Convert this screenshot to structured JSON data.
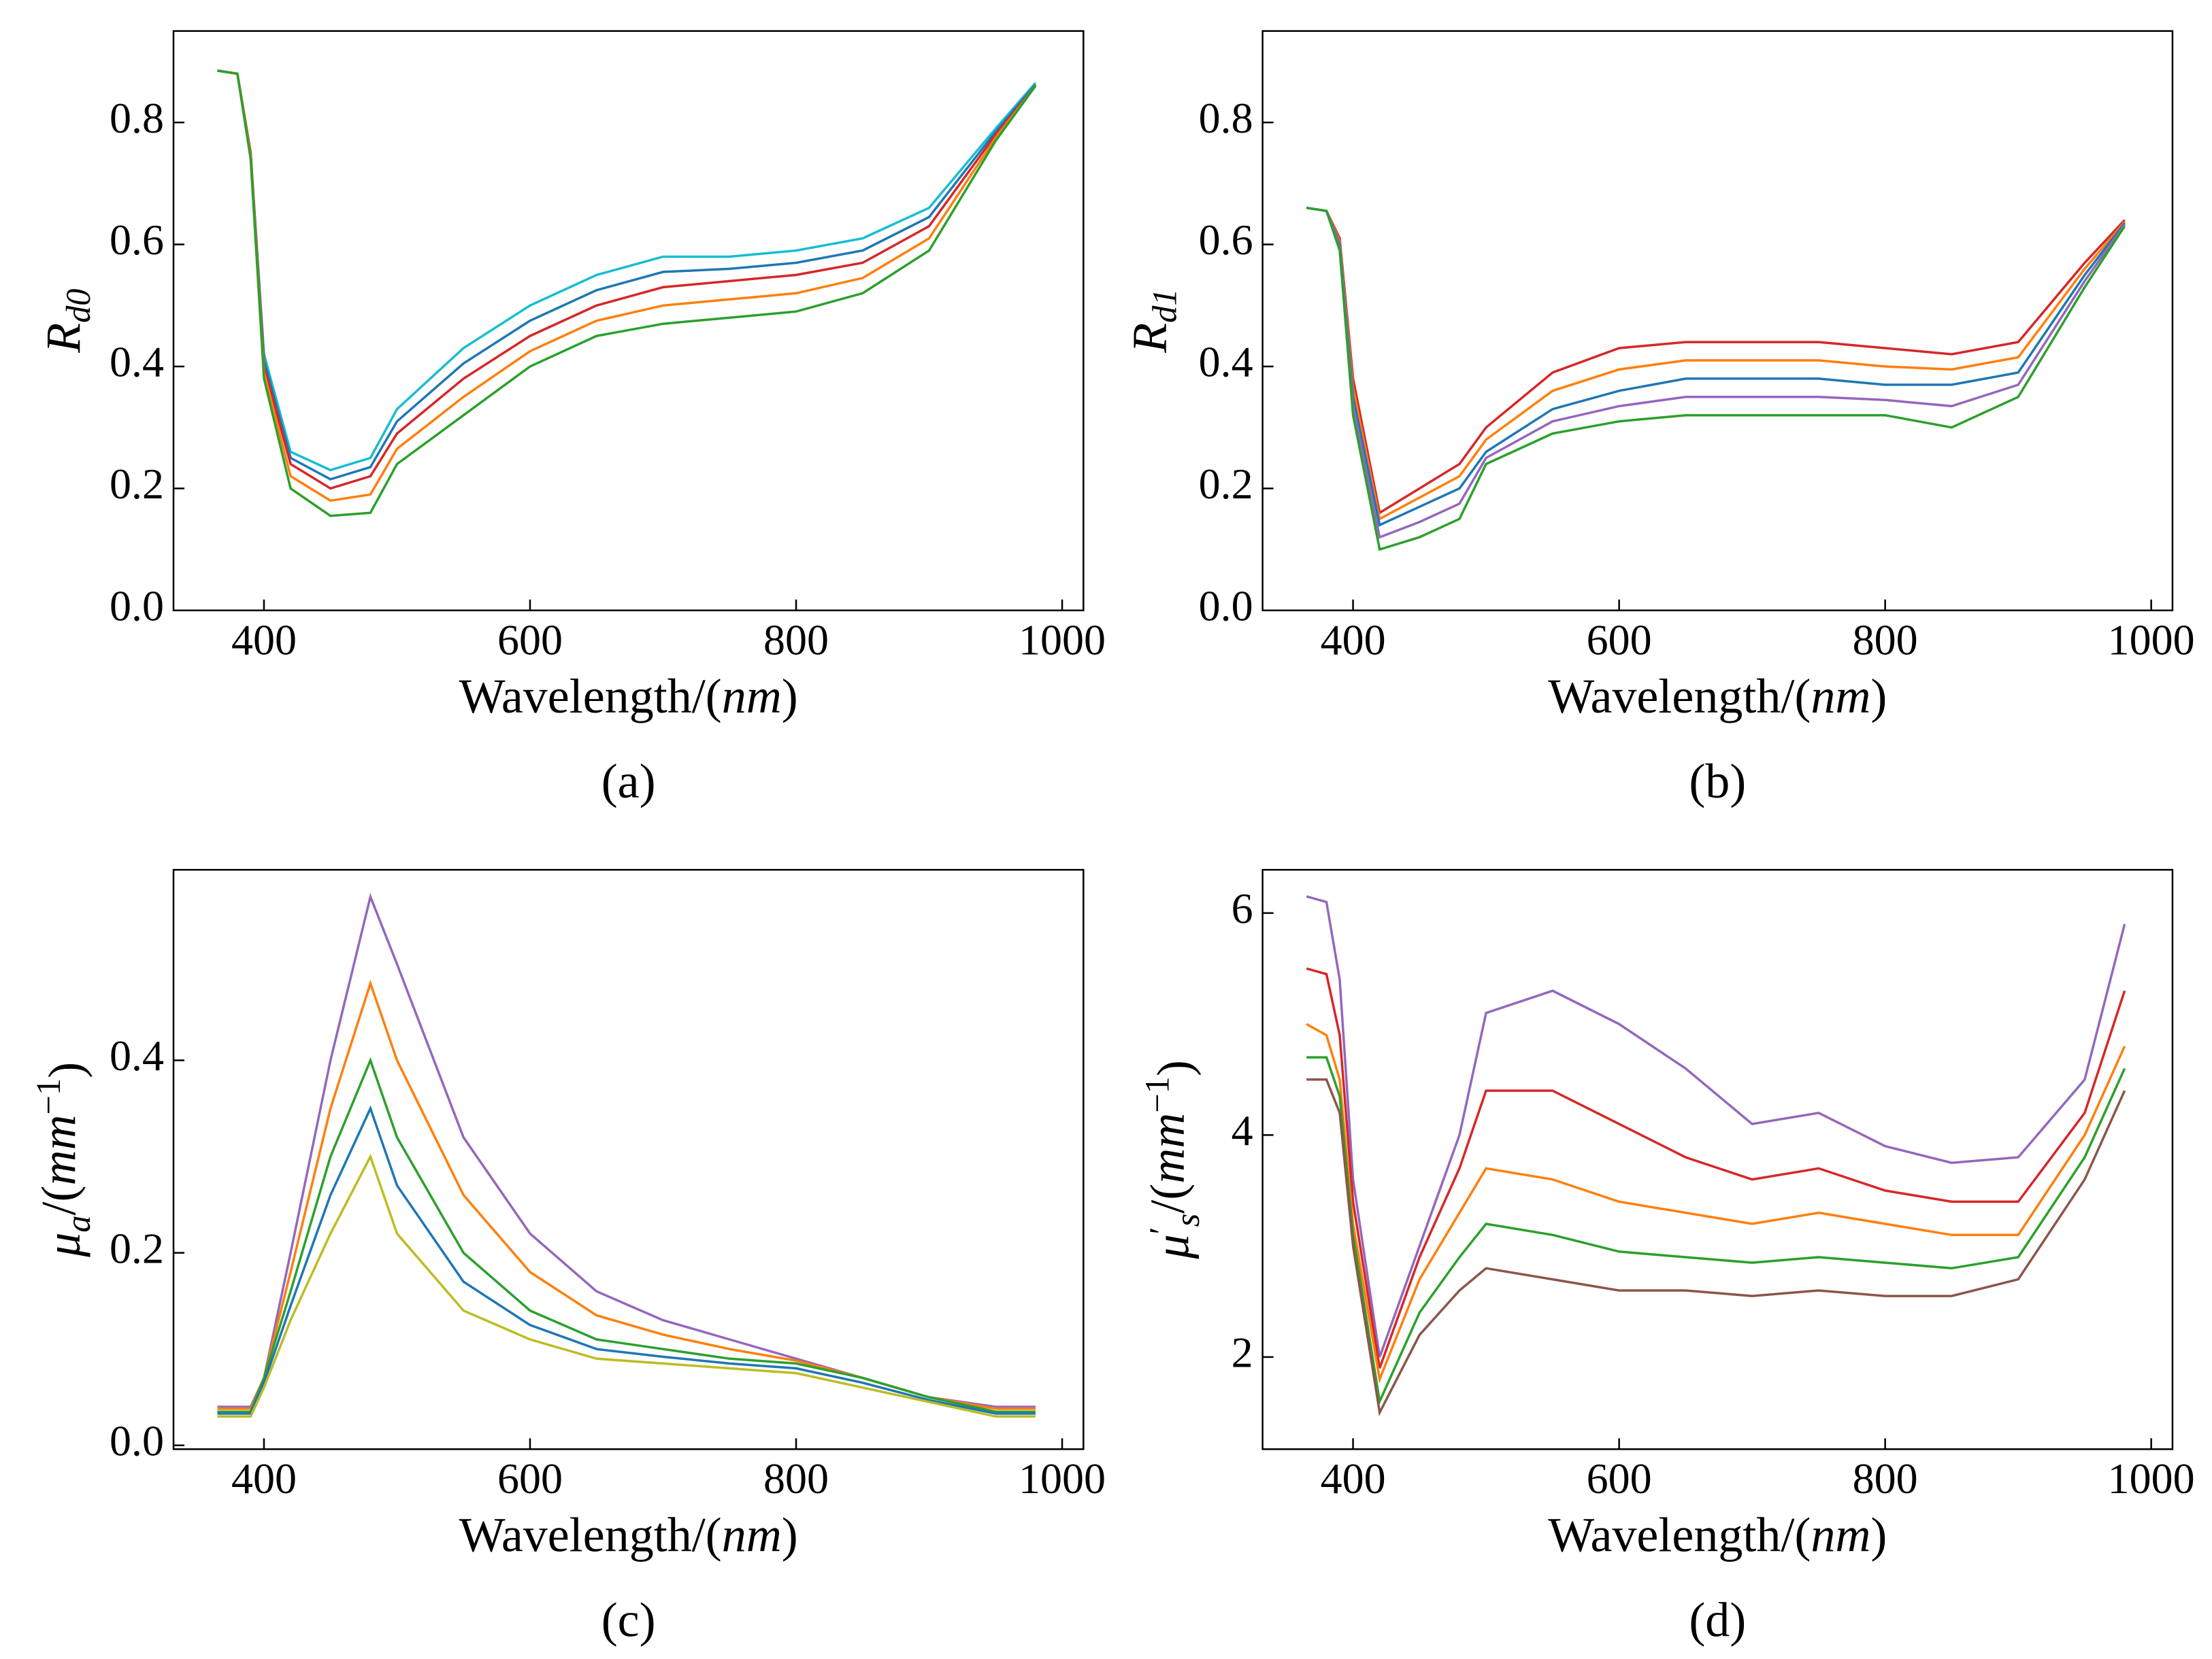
{
  "chart_data": [
    {
      "type": "line",
      "caption": "(a)",
      "xlabel": [
        {
          "text": "Wavelength/(",
          "style": "normal"
        },
        {
          "text": "nm",
          "style": "italic"
        },
        {
          "text": ")",
          "style": "normal"
        }
      ],
      "ylabel": [
        {
          "text": "R",
          "style": "italic"
        },
        {
          "text": "d0",
          "style": "sub"
        }
      ],
      "x": [
        365,
        380,
        390,
        400,
        420,
        450,
        480,
        500,
        550,
        600,
        650,
        700,
        750,
        800,
        850,
        900,
        950,
        980
      ],
      "series": [
        {
          "color": "#17becf",
          "values": [
            0.885,
            0.88,
            0.75,
            0.42,
            0.26,
            0.23,
            0.25,
            0.33,
            0.43,
            0.5,
            0.55,
            0.58,
            0.58,
            0.59,
            0.61,
            0.66,
            0.79,
            0.865
          ]
        },
        {
          "color": "#1f77b4",
          "values": [
            0.885,
            0.88,
            0.75,
            0.41,
            0.25,
            0.215,
            0.235,
            0.31,
            0.405,
            0.475,
            0.525,
            0.555,
            0.56,
            0.57,
            0.59,
            0.645,
            0.785,
            0.862
          ]
        },
        {
          "color": "#d62728",
          "values": [
            0.885,
            0.88,
            0.75,
            0.4,
            0.24,
            0.2,
            0.22,
            0.29,
            0.38,
            0.45,
            0.5,
            0.53,
            0.54,
            0.55,
            0.57,
            0.63,
            0.78,
            0.86
          ]
        },
        {
          "color": "#ff7f0e",
          "values": [
            0.885,
            0.88,
            0.745,
            0.39,
            0.22,
            0.18,
            0.19,
            0.265,
            0.35,
            0.425,
            0.475,
            0.5,
            0.51,
            0.52,
            0.545,
            0.61,
            0.775,
            0.86
          ]
        },
        {
          "color": "#2ca02c",
          "values": [
            0.885,
            0.88,
            0.74,
            0.38,
            0.2,
            0.155,
            0.16,
            0.24,
            0.32,
            0.4,
            0.45,
            0.47,
            0.48,
            0.49,
            0.52,
            0.59,
            0.77,
            0.86
          ]
        }
      ],
      "xlim": [
        332,
        1016
      ],
      "ylim": [
        0,
        0.95
      ],
      "xticks": [
        400,
        600,
        800,
        1000
      ],
      "yticks": [
        {
          "value": 0,
          "label": "0.0"
        },
        0.2,
        0.4,
        0.6,
        0.8
      ]
    },
    {
      "type": "line",
      "caption": "(b)",
      "xlabel": [
        {
          "text": "Wavelength/(",
          "style": "normal"
        },
        {
          "text": "nm",
          "style": "italic"
        },
        {
          "text": ")",
          "style": "normal"
        }
      ],
      "ylabel": [
        {
          "text": "R",
          "style": "italic"
        },
        {
          "text": "d1",
          "style": "sub"
        }
      ],
      "x": [
        365,
        380,
        390,
        400,
        420,
        450,
        480,
        500,
        550,
        600,
        650,
        700,
        750,
        800,
        850,
        900,
        950,
        980
      ],
      "series": [
        {
          "color": "#d62728",
          "values": [
            0.66,
            0.655,
            0.61,
            0.38,
            0.16,
            0.2,
            0.24,
            0.3,
            0.39,
            0.43,
            0.44,
            0.44,
            0.44,
            0.43,
            0.42,
            0.44,
            0.57,
            0.64
          ]
        },
        {
          "color": "#ff7f0e",
          "values": [
            0.66,
            0.655,
            0.605,
            0.365,
            0.15,
            0.185,
            0.22,
            0.28,
            0.36,
            0.395,
            0.41,
            0.41,
            0.41,
            0.4,
            0.395,
            0.415,
            0.56,
            0.637
          ]
        },
        {
          "color": "#1f77b4",
          "values": [
            0.66,
            0.655,
            0.6,
            0.35,
            0.14,
            0.17,
            0.2,
            0.26,
            0.33,
            0.36,
            0.38,
            0.38,
            0.38,
            0.37,
            0.37,
            0.39,
            0.55,
            0.635
          ]
        },
        {
          "color": "#9467bd",
          "values": [
            0.66,
            0.655,
            0.595,
            0.335,
            0.12,
            0.145,
            0.175,
            0.25,
            0.31,
            0.335,
            0.35,
            0.35,
            0.35,
            0.345,
            0.335,
            0.37,
            0.54,
            0.633
          ]
        },
        {
          "color": "#2ca02c",
          "values": [
            0.66,
            0.655,
            0.59,
            0.32,
            0.1,
            0.12,
            0.15,
            0.24,
            0.29,
            0.31,
            0.32,
            0.32,
            0.32,
            0.32,
            0.3,
            0.35,
            0.53,
            0.63
          ]
        }
      ],
      "xlim": [
        332,
        1016
      ],
      "ylim": [
        0,
        0.95
      ],
      "xticks": [
        400,
        600,
        800,
        1000
      ],
      "yticks": [
        {
          "value": 0,
          "label": "0.0"
        },
        0.2,
        0.4,
        0.6,
        0.8
      ]
    },
    {
      "type": "line",
      "caption": "(c)",
      "xlabel": [
        {
          "text": "Wavelength/(",
          "style": "normal"
        },
        {
          "text": "nm",
          "style": "italic"
        },
        {
          "text": ")",
          "style": "normal"
        }
      ],
      "ylabel": [
        {
          "text": "μ",
          "style": "italic"
        },
        {
          "text": "a",
          "style": "sub"
        },
        {
          "text": "/(",
          "style": "normal"
        },
        {
          "text": "mm",
          "style": "italic"
        },
        {
          "text": "−1",
          "style": "sup"
        },
        {
          "text": ")",
          "style": "normal"
        }
      ],
      "x": [
        365,
        380,
        390,
        400,
        420,
        450,
        480,
        500,
        550,
        600,
        650,
        700,
        750,
        800,
        850,
        900,
        950,
        980
      ],
      "series": [
        {
          "color": "#9467bd",
          "values": [
            0.04,
            0.04,
            0.04,
            0.07,
            0.2,
            0.4,
            0.57,
            0.5,
            0.32,
            0.22,
            0.16,
            0.13,
            0.11,
            0.09,
            0.07,
            0.05,
            0.04,
            0.04
          ]
        },
        {
          "color": "#ff7f0e",
          "values": [
            0.038,
            0.038,
            0.038,
            0.07,
            0.18,
            0.35,
            0.48,
            0.4,
            0.26,
            0.18,
            0.135,
            0.115,
            0.1,
            0.088,
            0.07,
            0.05,
            0.038,
            0.038
          ]
        },
        {
          "color": "#2ca02c",
          "values": [
            0.035,
            0.035,
            0.035,
            0.07,
            0.16,
            0.3,
            0.4,
            0.32,
            0.2,
            0.14,
            0.11,
            0.1,
            0.09,
            0.085,
            0.07,
            0.05,
            0.035,
            0.035
          ]
        },
        {
          "color": "#1f77b4",
          "values": [
            0.033,
            0.033,
            0.033,
            0.065,
            0.145,
            0.26,
            0.35,
            0.27,
            0.17,
            0.125,
            0.1,
            0.092,
            0.085,
            0.08,
            0.065,
            0.047,
            0.033,
            0.033
          ]
        },
        {
          "color": "#bcbd22",
          "values": [
            0.03,
            0.03,
            0.03,
            0.06,
            0.13,
            0.22,
            0.3,
            0.22,
            0.14,
            0.11,
            0.09,
            0.085,
            0.08,
            0.075,
            0.06,
            0.045,
            0.03,
            0.03
          ]
        }
      ],
      "xlim": [
        332,
        1016
      ],
      "ylim": [
        -0.004,
        0.598
      ],
      "xticks": [
        400,
        600,
        800,
        1000
      ],
      "yticks": [
        {
          "value": 0,
          "label": "0.0"
        },
        0.2,
        0.4
      ]
    },
    {
      "type": "line",
      "caption": "(d)",
      "xlabel": [
        {
          "text": "Wavelength/(",
          "style": "normal"
        },
        {
          "text": "nm",
          "style": "italic"
        },
        {
          "text": ")",
          "style": "normal"
        }
      ],
      "ylabel": [
        {
          "text": "μ",
          "style": "italic"
        },
        {
          "text": "′",
          "style": "sup"
        },
        {
          "text": "s",
          "style": "sub"
        },
        {
          "text": "/(",
          "style": "normal"
        },
        {
          "text": "mm",
          "style": "italic"
        },
        {
          "text": "−1",
          "style": "sup"
        },
        {
          "text": ")",
          "style": "normal"
        }
      ],
      "x": [
        365,
        380,
        390,
        400,
        420,
        450,
        480,
        500,
        550,
        600,
        650,
        700,
        750,
        800,
        850,
        900,
        950,
        980
      ],
      "series": [
        {
          "color": "#9467bd",
          "values": [
            6.15,
            6.1,
            5.4,
            3.6,
            2.0,
            3.0,
            4.0,
            5.1,
            5.3,
            5.0,
            4.6,
            4.1,
            4.2,
            3.9,
            3.75,
            3.8,
            4.5,
            5.9
          ]
        },
        {
          "color": "#d62728",
          "values": [
            5.5,
            5.45,
            4.9,
            3.4,
            1.9,
            2.9,
            3.7,
            4.4,
            4.4,
            4.1,
            3.8,
            3.6,
            3.7,
            3.5,
            3.4,
            3.4,
            4.2,
            5.3
          ]
        },
        {
          "color": "#ff7f0e",
          "values": [
            5.0,
            4.9,
            4.5,
            3.2,
            1.8,
            2.7,
            3.3,
            3.7,
            3.6,
            3.4,
            3.3,
            3.2,
            3.3,
            3.2,
            3.1,
            3.1,
            4.0,
            4.8
          ]
        },
        {
          "color": "#2ca02c",
          "values": [
            4.7,
            4.7,
            4.35,
            3.1,
            1.6,
            2.4,
            2.9,
            3.2,
            3.1,
            2.95,
            2.9,
            2.85,
            2.9,
            2.85,
            2.8,
            2.9,
            3.8,
            4.6
          ]
        },
        {
          "color": "#8c564b",
          "values": [
            4.5,
            4.5,
            4.2,
            3.0,
            1.5,
            2.2,
            2.6,
            2.8,
            2.7,
            2.6,
            2.6,
            2.55,
            2.6,
            2.55,
            2.55,
            2.7,
            3.6,
            4.4
          ]
        }
      ],
      "xlim": [
        332,
        1016
      ],
      "ylim": [
        1.17,
        6.39
      ],
      "xticks": [
        400,
        600,
        800,
        1000
      ],
      "yticks": [
        2,
        4,
        6
      ]
    }
  ]
}
